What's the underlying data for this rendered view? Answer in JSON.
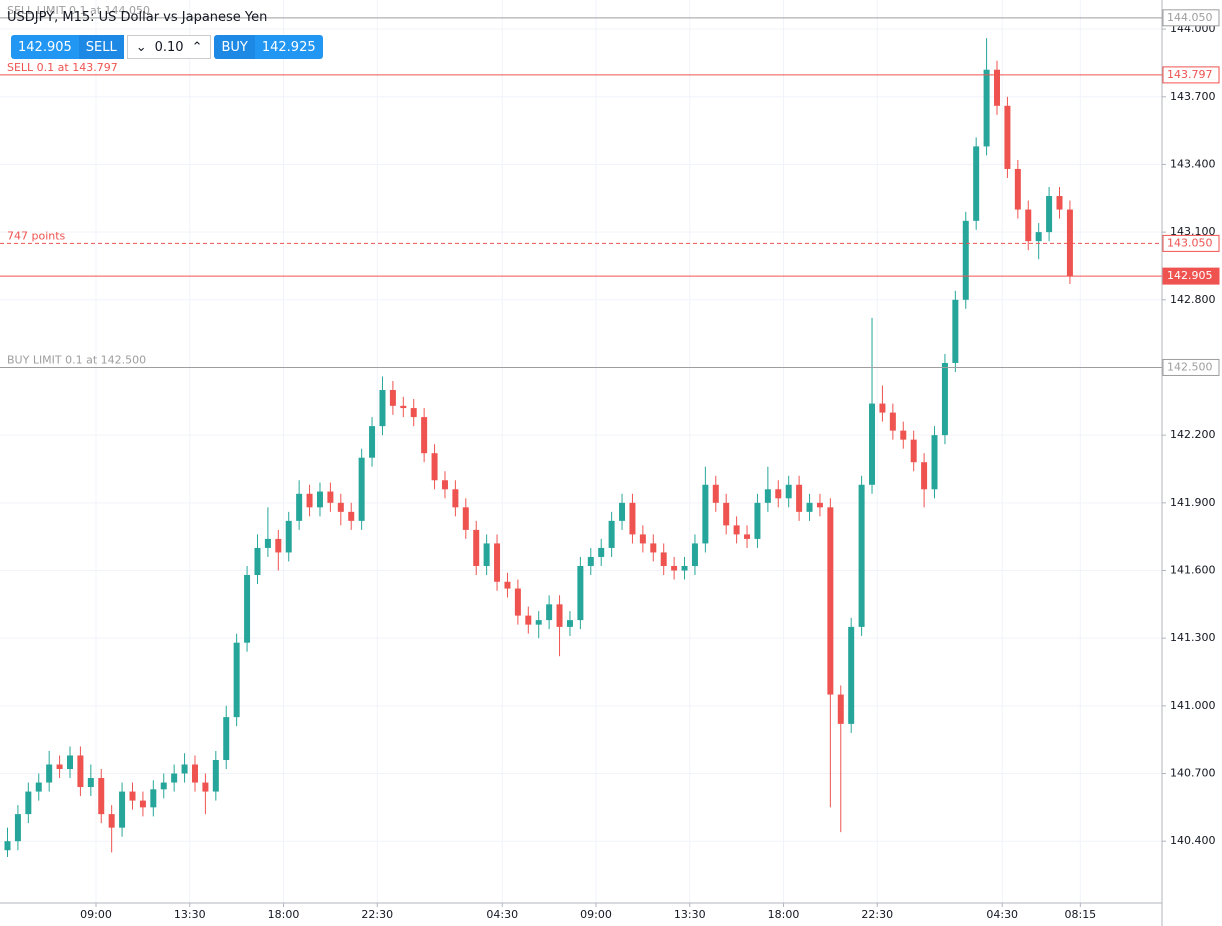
{
  "chart_data": {
    "type": "candlestick",
    "title": "USDJPY, M15: US Dollar vs Japanese Yen",
    "trade_panel": {
      "sell_price": "142.905",
      "sell_label": "SELL",
      "volume": "0.10",
      "buy_label": "BUY",
      "buy_price": "142.925"
    },
    "up_color": "#26a69a",
    "down_color": "#ef5350",
    "grid": true,
    "ylim": [
      140.126,
      144.129
    ],
    "xlim": [
      -4.61,
      51.17
    ],
    "yticks": [
      {
        "value": 140.4,
        "label": "140.400"
      },
      {
        "value": 140.7,
        "label": "140.700"
      },
      {
        "value": 141.0,
        "label": "141.000"
      },
      {
        "value": 141.3,
        "label": "141.300"
      },
      {
        "value": 141.6,
        "label": "141.600"
      },
      {
        "value": 141.9,
        "label": "141.900"
      },
      {
        "value": 142.2,
        "label": "142.200"
      },
      {
        "value": 142.5,
        "label": "142.500"
      },
      {
        "value": 142.8,
        "label": "142.800"
      },
      {
        "value": 143.1,
        "label": "143.100"
      },
      {
        "value": 143.4,
        "label": "143.400"
      },
      {
        "value": 143.7,
        "label": "143.700"
      },
      {
        "value": 144.0,
        "label": "144.000"
      }
    ],
    "xticks": [
      {
        "value": 0,
        "label": "09:00"
      },
      {
        "value": 4.5,
        "label": "13:30"
      },
      {
        "value": 9,
        "label": "18:00"
      },
      {
        "value": 13.5,
        "label": "22:30"
      },
      {
        "value": 19.5,
        "label": "04:30"
      },
      {
        "value": 24,
        "label": "09:00"
      },
      {
        "value": 28.5,
        "label": "13:30"
      },
      {
        "value": 33,
        "label": "18:00"
      },
      {
        "value": 37.5,
        "label": "22:30"
      },
      {
        "value": 43.5,
        "label": "04:30"
      },
      {
        "value": 47.25,
        "label": "08:15"
      }
    ],
    "price_lines": [
      {
        "text": "SELL LIMIT 0.1 at 144.050",
        "price": {
          "value": 144.05,
          "label": "144.050"
        },
        "color": "#9e9e9e",
        "style": "solid"
      },
      {
        "text": "SELL 0.1 at 143.797",
        "price": {
          "value": 143.797,
          "label": "143.797"
        },
        "color": "#ef5350",
        "style": "solid"
      },
      {
        "text": "747 points",
        "price": {
          "value": 143.05,
          "label": "143.050"
        },
        "color": "#ef5350",
        "style": "dashed"
      },
      {
        "price": {
          "value": 142.905,
          "label": "142.905"
        },
        "color": "#ef5350",
        "style": "current"
      },
      {
        "text": "BUY LIMIT 0.1 at 142.500",
        "price": {
          "value": 142.5,
          "label": "142.500"
        },
        "color": "#9e9e9e",
        "style": "solid"
      }
    ],
    "x": [
      -4.25,
      -3.75,
      -3.25,
      -2.75,
      -2.25,
      -1.75,
      -1.25,
      -0.75,
      -0.25,
      0.25,
      0.75,
      1.25,
      1.75,
      2.25,
      2.75,
      3.25,
      3.75,
      4.25,
      4.75,
      5.25,
      5.75,
      6.25,
      6.75,
      7.25,
      7.75,
      8.25,
      8.75,
      9.25,
      9.75,
      10.25,
      10.75,
      11.25,
      11.75,
      12.25,
      12.75,
      13.25,
      13.75,
      14.25,
      14.75,
      15.25,
      15.75,
      16.25,
      16.75,
      17.25,
      17.75,
      18.25,
      18.75,
      19.25,
      19.75,
      20.25,
      20.75,
      21.25,
      21.75,
      22.25,
      22.75,
      23.25,
      23.75,
      24.25,
      24.75,
      25.25,
      25.75,
      26.25,
      26.75,
      27.25,
      27.75,
      28.25,
      28.75,
      29.25,
      29.75,
      30.25,
      30.75,
      31.25,
      31.75,
      32.25,
      32.75,
      33.25,
      33.75,
      34.25,
      34.75,
      35.25,
      35.75,
      36.25,
      36.75,
      37.25,
      37.75,
      38.25,
      38.75,
      39.25,
      39.75,
      40.25,
      40.75,
      41.25,
      41.75,
      42.25,
      42.75,
      43.25,
      43.75,
      44.25,
      44.75,
      45.25,
      45.75,
      46.25,
      46.75
    ],
    "open": [
      140.36,
      140.4,
      140.52,
      140.62,
      140.66,
      140.74,
      140.72,
      140.78,
      140.64,
      140.68,
      140.52,
      140.46,
      140.62,
      140.58,
      140.55,
      140.63,
      140.66,
      140.7,
      140.74,
      140.66,
      140.62,
      140.76,
      140.95,
      141.28,
      141.58,
      141.7,
      141.74,
      141.68,
      141.82,
      141.94,
      141.88,
      141.95,
      141.9,
      141.86,
      141.82,
      142.1,
      142.24,
      142.4,
      142.33,
      142.32,
      142.28,
      142.12,
      142.0,
      141.96,
      141.88,
      141.78,
      141.62,
      141.72,
      141.55,
      141.52,
      141.4,
      141.36,
      141.38,
      141.45,
      141.35,
      141.38,
      141.62,
      141.66,
      141.7,
      141.82,
      141.9,
      141.76,
      141.72,
      141.68,
      141.62,
      141.6,
      141.62,
      141.72,
      141.98,
      141.9,
      141.8,
      141.76,
      141.74,
      141.9,
      141.96,
      141.92,
      141.98,
      141.86,
      141.9,
      141.88,
      141.05,
      140.92,
      141.35,
      141.98,
      142.34,
      142.3,
      142.22,
      142.18,
      142.08,
      141.96,
      142.2,
      142.52,
      142.8,
      143.15,
      143.48,
      143.82,
      143.66,
      143.38,
      143.2,
      143.06,
      143.1,
      143.26,
      143.2
    ],
    "high": [
      140.46,
      140.56,
      140.66,
      140.7,
      140.8,
      140.78,
      140.82,
      140.82,
      140.74,
      140.72,
      140.56,
      140.66,
      140.66,
      140.62,
      140.67,
      140.7,
      140.74,
      140.79,
      140.78,
      140.7,
      140.8,
      141.0,
      141.32,
      141.62,
      141.76,
      141.88,
      141.78,
      141.86,
      142.0,
      141.98,
      141.99,
      141.99,
      141.94,
      141.9,
      142.14,
      142.28,
      142.46,
      142.44,
      142.37,
      142.36,
      142.32,
      142.16,
      142.04,
      142.0,
      141.92,
      141.82,
      141.76,
      141.76,
      141.59,
      141.56,
      141.44,
      141.42,
      141.49,
      141.49,
      141.42,
      141.66,
      141.7,
      141.74,
      141.86,
      141.94,
      141.94,
      141.8,
      141.76,
      141.72,
      141.66,
      141.66,
      141.76,
      142.06,
      142.02,
      141.94,
      141.84,
      141.8,
      141.94,
      142.06,
      142.0,
      142.02,
      142.02,
      141.94,
      141.94,
      141.92,
      141.09,
      141.39,
      142.02,
      142.72,
      142.42,
      142.34,
      142.26,
      142.22,
      142.12,
      142.24,
      142.56,
      142.84,
      143.19,
      143.52,
      143.96,
      143.86,
      143.7,
      143.42,
      143.24,
      143.14,
      143.3,
      143.3,
      143.24
    ],
    "low": [
      140.33,
      140.36,
      140.48,
      140.58,
      140.62,
      140.68,
      140.68,
      140.6,
      140.6,
      140.48,
      140.35,
      140.42,
      140.54,
      140.51,
      140.51,
      140.59,
      140.62,
      140.66,
      140.62,
      140.52,
      140.58,
      140.72,
      140.91,
      141.24,
      141.54,
      141.66,
      141.6,
      141.64,
      141.78,
      141.84,
      141.84,
      141.86,
      141.8,
      141.78,
      141.78,
      142.06,
      142.2,
      142.29,
      142.28,
      142.24,
      142.08,
      141.96,
      141.92,
      141.84,
      141.74,
      141.58,
      141.58,
      141.51,
      141.48,
      141.36,
      141.32,
      141.3,
      141.34,
      141.22,
      141.31,
      141.34,
      141.58,
      141.62,
      141.66,
      141.78,
      141.72,
      141.68,
      141.64,
      141.58,
      141.56,
      141.56,
      141.58,
      141.68,
      141.86,
      141.76,
      141.72,
      141.7,
      141.7,
      141.86,
      141.88,
      141.88,
      141.82,
      141.82,
      141.84,
      140.55,
      140.44,
      140.88,
      141.31,
      141.94,
      142.26,
      142.18,
      142.14,
      142.04,
      141.88,
      141.92,
      142.16,
      142.48,
      142.76,
      143.11,
      143.44,
      143.62,
      143.34,
      143.16,
      143.02,
      142.98,
      143.06,
      143.16,
      142.87
    ],
    "close": [
      140.4,
      140.52,
      140.62,
      140.66,
      140.74,
      140.72,
      140.78,
      140.64,
      140.68,
      140.52,
      140.46,
      140.62,
      140.58,
      140.55,
      140.63,
      140.66,
      140.7,
      140.74,
      140.66,
      140.62,
      140.76,
      140.95,
      141.28,
      141.58,
      141.7,
      141.74,
      141.68,
      141.82,
      141.94,
      141.88,
      141.95,
      141.9,
      141.86,
      141.82,
      142.1,
      142.24,
      142.4,
      142.33,
      142.32,
      142.28,
      142.12,
      142.0,
      141.96,
      141.88,
      141.78,
      141.62,
      141.72,
      141.55,
      141.52,
      141.4,
      141.36,
      141.38,
      141.45,
      141.35,
      141.38,
      141.62,
      141.66,
      141.7,
      141.82,
      141.9,
      141.76,
      141.72,
      141.68,
      141.62,
      141.6,
      141.62,
      141.72,
      141.98,
      141.9,
      141.8,
      141.76,
      141.74,
      141.9,
      141.96,
      141.92,
      141.98,
      141.86,
      141.9,
      141.88,
      141.05,
      140.92,
      141.35,
      141.98,
      142.34,
      142.3,
      142.22,
      142.18,
      142.08,
      141.96,
      142.2,
      142.52,
      142.8,
      143.15,
      143.48,
      143.82,
      143.66,
      143.38,
      143.2,
      143.06,
      143.1,
      143.26,
      143.2,
      142.905
    ]
  }
}
